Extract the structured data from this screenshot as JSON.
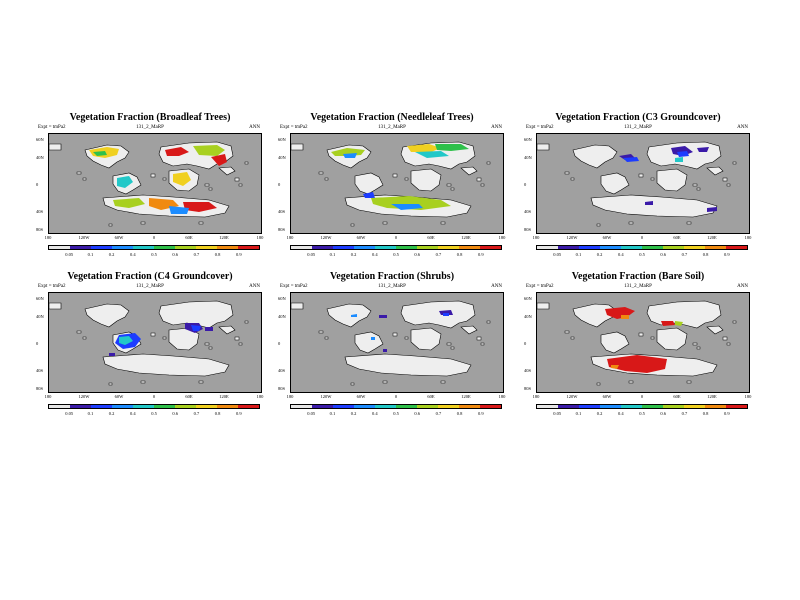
{
  "figure": {
    "experiment_label": "Expt = tmPa2",
    "run_label": "131_2_MaRP",
    "season_label": "ANN",
    "lat_labels": [
      "60N",
      "40N",
      "0",
      "40S",
      "80S"
    ],
    "lon_labels": [
      "180",
      "120W",
      "60W",
      "0",
      "60E",
      "120E",
      "180"
    ],
    "colorbar_ticks": [
      "0.05",
      "0.1",
      "0.2",
      "0.4",
      "0.5",
      "0.6",
      "0.7",
      "0.8",
      "0.9"
    ],
    "colorbar_colors": [
      "#e6e6e6",
      "#3a1aa8",
      "#1c3cff",
      "#1c8cff",
      "#22c8c8",
      "#2ec04a",
      "#a8d020",
      "#f0d020",
      "#f08a10",
      "#d81818"
    ],
    "land_color": "#eeeeee",
    "ocean_color": "#a0a0a0"
  },
  "panels": [
    {
      "title": "Vegetation Fraction (Broadleaf Trees)"
    },
    {
      "title": "Vegetation Fraction (Needleleaf Trees)"
    },
    {
      "title": "Vegetation Fraction (C3 Groundcover)"
    },
    {
      "title": "Vegetation Fraction (C4 Groundcover)"
    },
    {
      "title": "Vegetation Fraction (Shrubs)"
    },
    {
      "title": "Vegetation Fraction (Bare Soil)"
    }
  ]
}
